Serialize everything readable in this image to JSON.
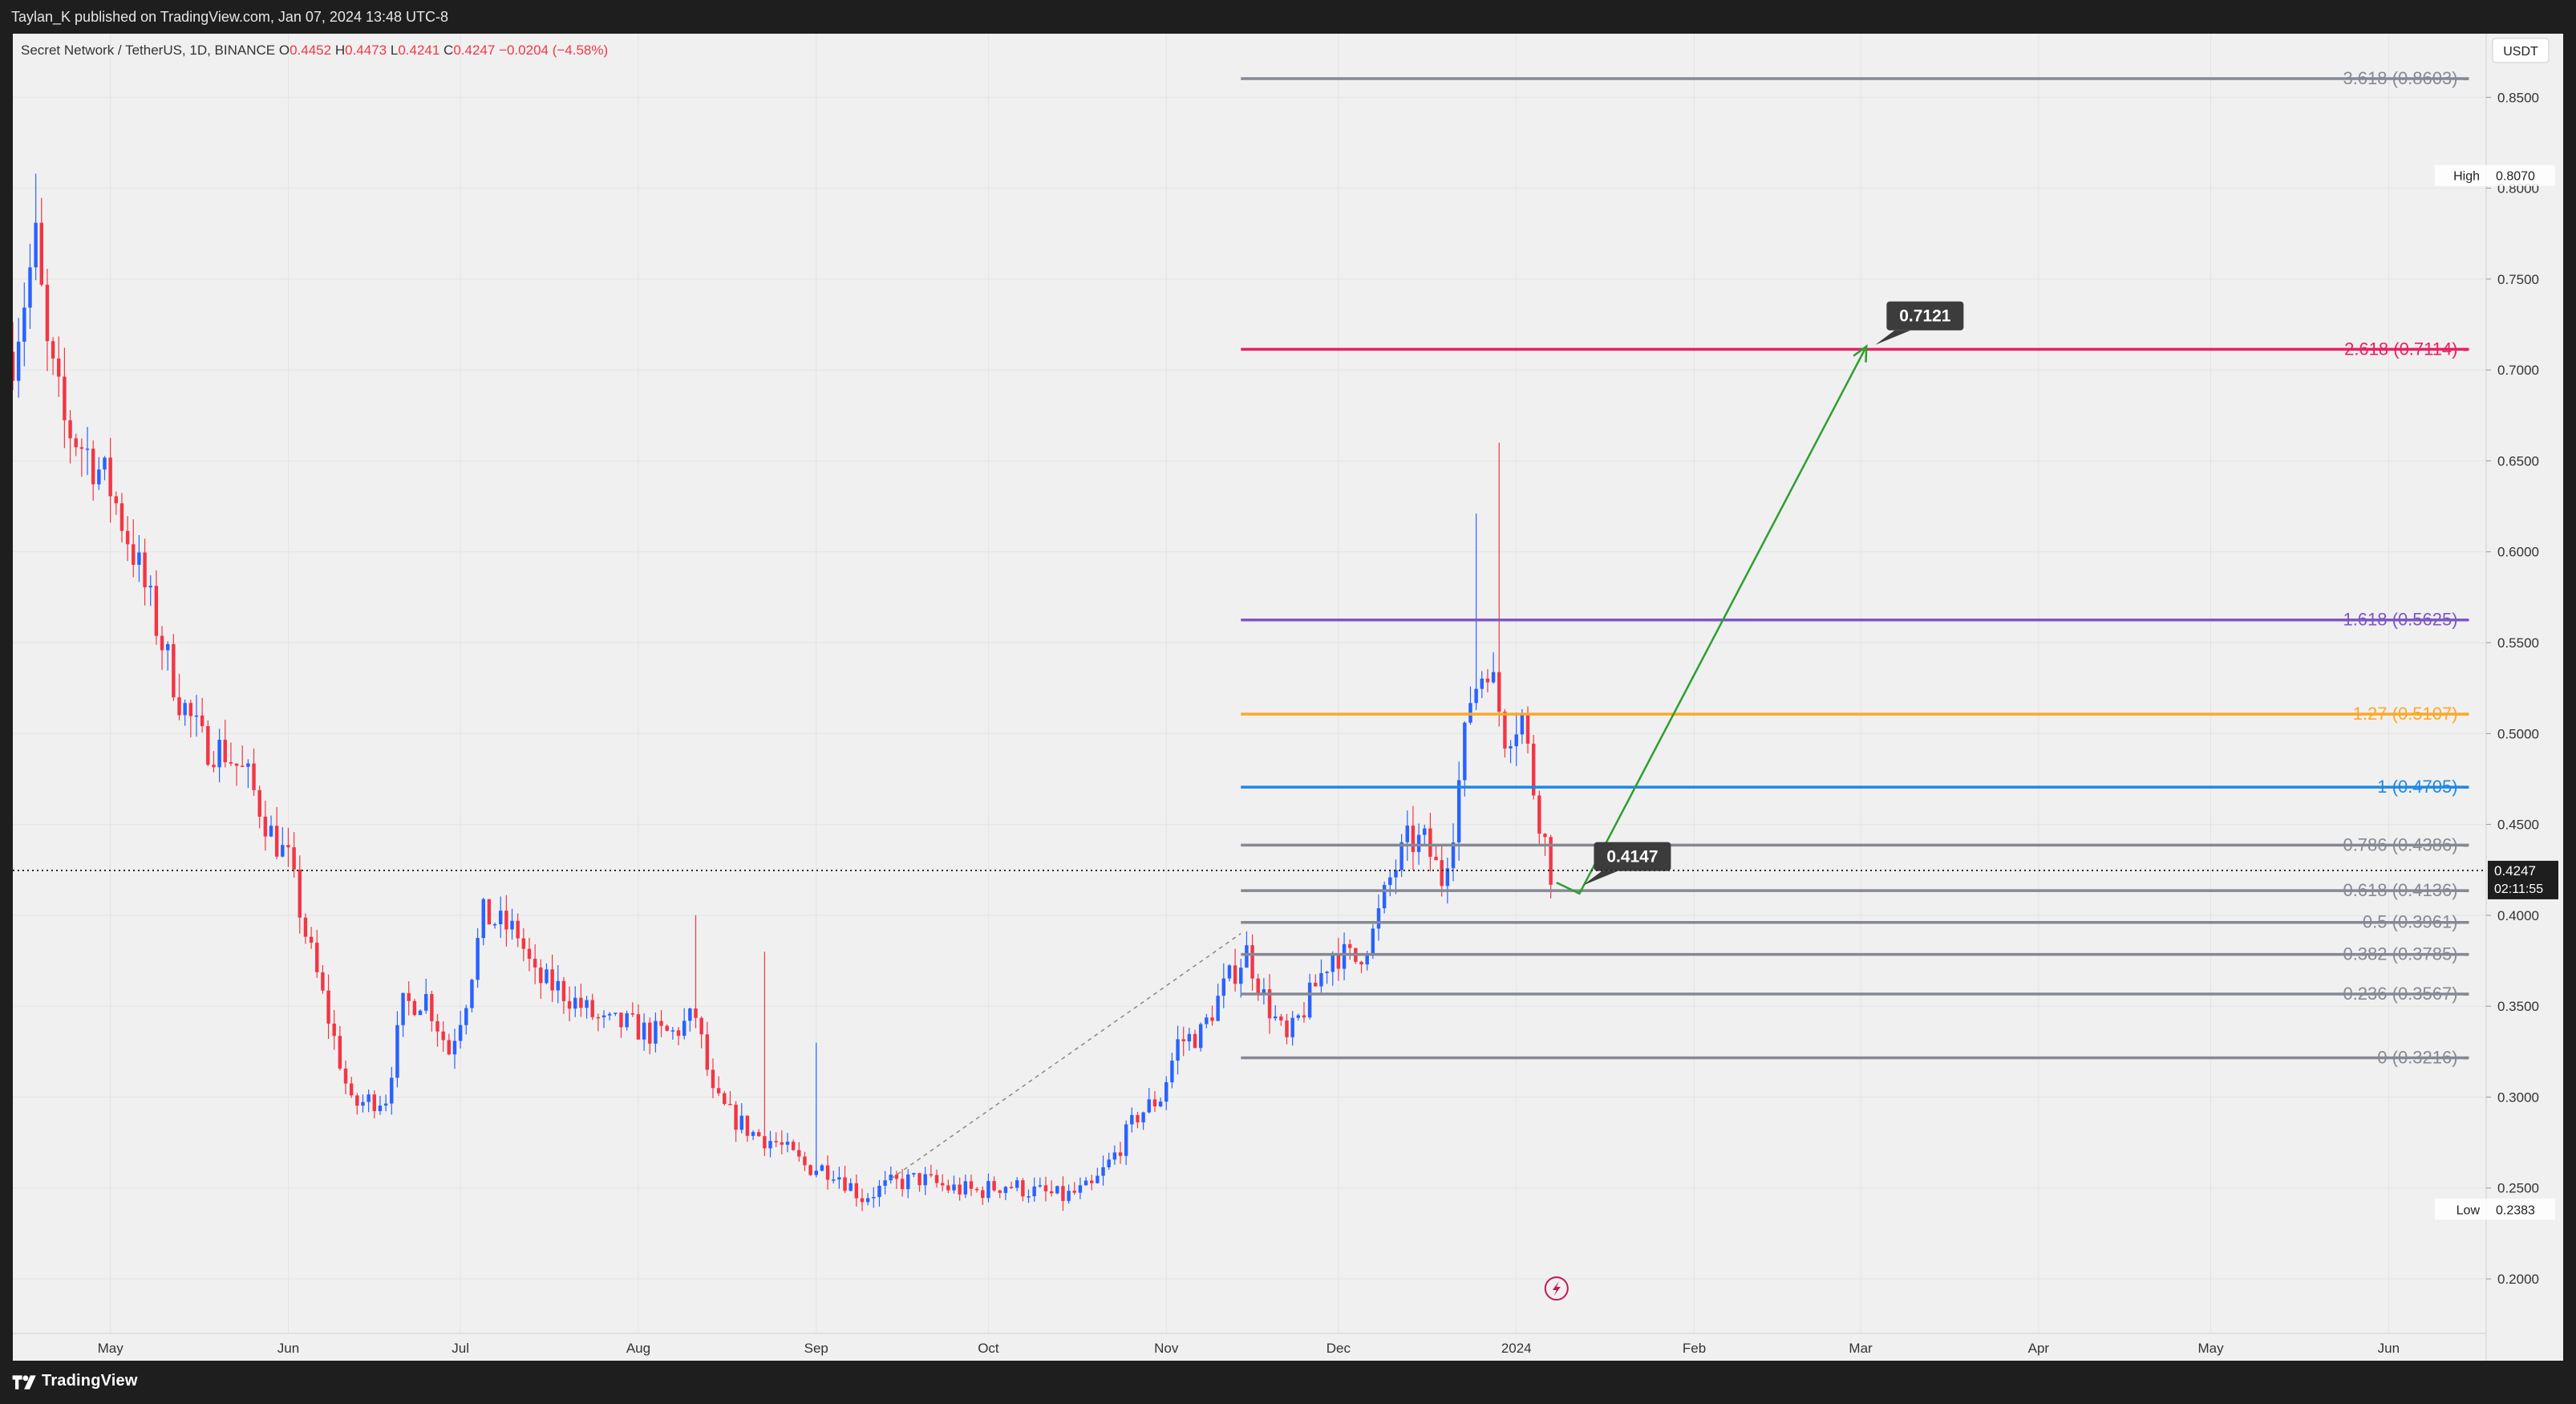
{
  "header": {
    "published": "Taylan_K published on TradingView.com, Jan 07, 2024 13:48 UTC-8"
  },
  "footer": {
    "brand": "TradingView"
  },
  "chart_data": {
    "type": "candlestick",
    "symbol_info": {
      "name": "Secret Network / TetherUS, 1D, BINANCE",
      "ohlc": [
        {
          "k": "O",
          "v": "0.4452"
        },
        {
          "k": "H",
          "v": "0.4473"
        },
        {
          "k": "L",
          "v": "0.4241"
        },
        {
          "k": "C",
          "v": "0.4247"
        }
      ],
      "change": "−0.0204 (−4.58%)"
    },
    "currency": "USDT",
    "ylim": [
      0.17,
      0.885
    ],
    "y_ticks": [
      "0.2000",
      "0.2500",
      "0.3000",
      "0.3500",
      "0.4000",
      "0.4500",
      "0.5000",
      "0.5500",
      "0.6000",
      "0.6500",
      "0.7000",
      "0.7500",
      "0.8000",
      "0.8500"
    ],
    "x_labels": [
      {
        "label": "May",
        "date": "2023-05-01"
      },
      {
        "label": "Jun",
        "date": "2023-06-01"
      },
      {
        "label": "Jul",
        "date": "2023-07-01"
      },
      {
        "label": "Aug",
        "date": "2023-08-01"
      },
      {
        "label": "Sep",
        "date": "2023-09-01"
      },
      {
        "label": "Oct",
        "date": "2023-10-01"
      },
      {
        "label": "Nov",
        "date": "2023-11-01"
      },
      {
        "label": "Dec",
        "date": "2023-12-01"
      },
      {
        "label": "2024",
        "date": "2024-01-01"
      },
      {
        "label": "Feb",
        "date": "2024-02-01"
      },
      {
        "label": "Mar",
        "date": "2024-03-01"
      },
      {
        "label": "Apr",
        "date": "2024-04-01"
      },
      {
        "label": "May",
        "date": "2024-05-01"
      },
      {
        "label": "Jun",
        "date": "2024-06-01"
      }
    ],
    "x_range": [
      "2023-04-14",
      "2024-06-18"
    ],
    "price_path": [
      [
        "2023-04-14",
        0.71
      ],
      [
        "2023-04-16",
        0.74
      ],
      [
        "2023-04-18",
        0.77
      ],
      [
        "2023-04-20",
        0.71
      ],
      [
        "2023-04-23",
        0.67
      ],
      [
        "2023-04-27",
        0.655
      ],
      [
        "2023-05-01",
        0.635
      ],
      [
        "2023-05-05",
        0.6
      ],
      [
        "2023-05-09",
        0.56
      ],
      [
        "2023-05-13",
        0.52
      ],
      [
        "2023-05-17",
        0.495
      ],
      [
        "2023-05-21",
        0.49
      ],
      [
        "2023-05-25",
        0.475
      ],
      [
        "2023-05-29",
        0.445
      ],
      [
        "2023-06-01",
        0.43
      ],
      [
        "2023-06-04",
        0.39
      ],
      [
        "2023-06-07",
        0.355
      ],
      [
        "2023-06-10",
        0.32
      ],
      [
        "2023-06-12",
        0.295
      ],
      [
        "2023-06-15",
        0.298
      ],
      [
        "2023-06-18",
        0.3
      ],
      [
        "2023-06-21",
        0.35
      ],
      [
        "2023-06-25",
        0.355
      ],
      [
        "2023-06-29",
        0.325
      ],
      [
        "2023-07-02",
        0.355
      ],
      [
        "2023-07-05",
        0.4
      ],
      [
        "2023-07-08",
        0.395
      ],
      [
        "2023-07-11",
        0.39
      ],
      [
        "2023-07-14",
        0.365
      ],
      [
        "2023-07-18",
        0.36
      ],
      [
        "2023-07-22",
        0.35
      ],
      [
        "2023-07-26",
        0.34
      ],
      [
        "2023-07-30",
        0.34
      ],
      [
        "2023-08-03",
        0.335
      ],
      [
        "2023-08-07",
        0.335
      ],
      [
        "2023-08-11",
        0.345
      ],
      [
        "2023-08-14",
        0.3
      ],
      [
        "2023-08-17",
        0.29
      ],
      [
        "2023-08-21",
        0.28
      ],
      [
        "2023-08-25",
        0.275
      ],
      [
        "2023-08-30",
        0.262
      ],
      [
        "2023-09-04",
        0.26
      ],
      [
        "2023-09-09",
        0.245
      ],
      [
        "2023-09-14",
        0.252
      ],
      [
        "2023-09-19",
        0.255
      ],
      [
        "2023-09-24",
        0.25
      ],
      [
        "2023-09-29",
        0.248
      ],
      [
        "2023-10-04",
        0.252
      ],
      [
        "2023-10-09",
        0.248
      ],
      [
        "2023-10-14",
        0.245
      ],
      [
        "2023-10-19",
        0.25
      ],
      [
        "2023-10-23",
        0.268
      ],
      [
        "2023-10-27",
        0.29
      ],
      [
        "2023-10-31",
        0.3
      ],
      [
        "2023-11-03",
        0.33
      ],
      [
        "2023-11-07",
        0.335
      ],
      [
        "2023-11-11",
        0.36
      ],
      [
        "2023-11-15",
        0.38
      ],
      [
        "2023-11-18",
        0.355
      ],
      [
        "2023-11-22",
        0.33
      ],
      [
        "2023-11-26",
        0.355
      ],
      [
        "2023-11-30",
        0.38
      ],
      [
        "2023-12-04",
        0.375
      ],
      [
        "2023-12-07",
        0.39
      ],
      [
        "2023-12-10",
        0.42
      ],
      [
        "2023-12-13",
        0.44
      ],
      [
        "2023-12-16",
        0.44
      ],
      [
        "2023-12-19",
        0.42
      ],
      [
        "2023-12-21",
        0.45
      ],
      [
        "2023-12-24",
        0.52
      ],
      [
        "2023-12-27",
        0.54
      ],
      [
        "2023-12-30",
        0.5
      ],
      [
        "2024-01-02",
        0.51
      ],
      [
        "2024-01-04",
        0.47
      ],
      [
        "2024-01-06",
        0.44
      ],
      [
        "2024-01-07",
        0.4247
      ]
    ],
    "spikes": [
      {
        "date": "2023-04-18",
        "high": 0.808
      },
      {
        "date": "2023-12-25",
        "high": 0.621
      },
      {
        "date": "2023-12-29",
        "high": 0.66
      },
      {
        "date": "2023-08-11",
        "high": 0.4
      },
      {
        "date": "2023-08-23",
        "high": 0.38
      },
      {
        "date": "2023-09-01",
        "high": 0.33
      }
    ],
    "fib_levels": [
      {
        "ratio": "3.618",
        "value": 0.8603,
        "color": "#868993"
      },
      {
        "ratio": "2.618",
        "value": 0.7114,
        "color": "#e91e63"
      },
      {
        "ratio": "1.618",
        "value": 0.5625,
        "color": "#7e57c2"
      },
      {
        "ratio": "1.27",
        "value": 0.5107,
        "color": "#ffa726"
      },
      {
        "ratio": "1",
        "value": 0.4705,
        "color": "#1e88e5"
      },
      {
        "ratio": "0.786",
        "value": 0.4386,
        "color": "#868993"
      },
      {
        "ratio": "0.618",
        "value": 0.4136,
        "color": "#868993"
      },
      {
        "ratio": "0.5",
        "value": 0.3961,
        "color": "#868993"
      },
      {
        "ratio": "0.382",
        "value": 0.3785,
        "color": "#868993"
      },
      {
        "ratio": "0.236",
        "value": 0.3567,
        "color": "#868993"
      },
      {
        "ratio": "0",
        "value": 0.3216,
        "color": "#868993"
      }
    ],
    "fib_range": {
      "start": "2023-11-14",
      "end": "2024-06-15"
    },
    "fib_base_line": {
      "from": [
        "2023-09-14",
        0.255
      ],
      "to": [
        "2023-11-14",
        0.39
      ]
    },
    "projection_path": {
      "points": [
        [
          "2024-01-08",
          0.418
        ],
        [
          "2024-01-12",
          0.412
        ],
        [
          "2024-03-02",
          0.713
        ]
      ],
      "color": "#2e9e2e"
    },
    "callouts": [
      {
        "label": "0.7121",
        "date": "2024-03-03",
        "value": 0.7121
      },
      {
        "label": "0.4147",
        "date": "2024-01-12",
        "value": 0.4147
      }
    ],
    "high_marker": {
      "label": "High",
      "value": "0.8070",
      "level": 0.807
    },
    "low_marker": {
      "label": "Low",
      "value": "0.2383",
      "level": 0.2383
    },
    "last_price": {
      "value": "0.4247",
      "level": 0.4247,
      "countdown": "02:11:55"
    },
    "colors": {
      "up": "#2962ff",
      "down": "#f23645",
      "grid": "#e4e4e4",
      "text": "#333333"
    }
  }
}
